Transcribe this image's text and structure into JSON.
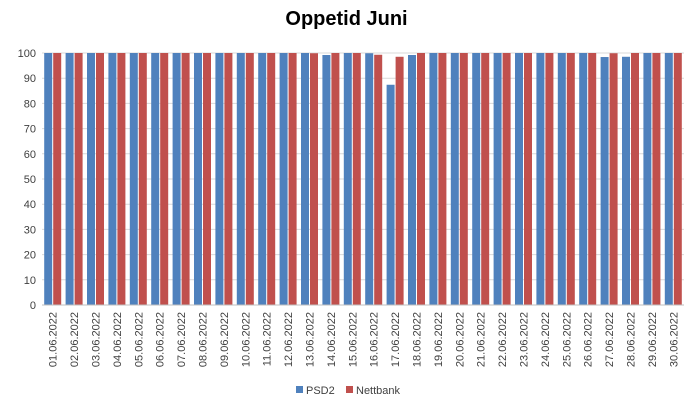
{
  "chart_data": {
    "type": "bar",
    "title": "Oppetid Juni",
    "xlabel": "",
    "ylabel": "",
    "ylim": [
      0,
      100
    ],
    "yticks": [
      0,
      10,
      20,
      30,
      40,
      50,
      60,
      70,
      80,
      90,
      100
    ],
    "grid": true,
    "legend_position": "bottom",
    "categories": [
      "01.06.2022",
      "02.06.2022",
      "03.06.2022",
      "04.06.2022",
      "05.06.2022",
      "06.06.2022",
      "07.06.2022",
      "08.06.2022",
      "09.06.2022",
      "10.06.2022",
      "11.06.2022",
      "12.06.2022",
      "13.06.2022",
      "14.06.2022",
      "15.06.2022",
      "16.06.2022",
      "17.06.2022",
      "18.06.2022",
      "19.06.2022",
      "20.06.2022",
      "21.06.2022",
      "22.06.2022",
      "23.06.2022",
      "24.06.2022",
      "25.06.2022",
      "26.06.2022",
      "27.06.2022",
      "28.06.2022",
      "29.06.2022",
      "30.06.2022"
    ],
    "series": [
      {
        "name": "PSD2",
        "color": "#4f81bd",
        "values": [
          100,
          100,
          100,
          100,
          100,
          100,
          100,
          100,
          100,
          100,
          100,
          100,
          100,
          99.2,
          100,
          99.9,
          87.4,
          99.2,
          100,
          100,
          100,
          100,
          100,
          100,
          100,
          100,
          98.4,
          98.5,
          100,
          100
        ]
      },
      {
        "name": "Nettbank",
        "color": "#c0504d",
        "values": [
          100,
          100,
          100,
          100,
          100,
          100,
          100,
          100,
          100,
          100,
          100,
          100,
          99.9,
          100,
          100,
          99.3,
          98.5,
          100,
          100,
          100,
          100,
          100,
          100,
          100,
          100,
          100,
          99.9,
          100,
          100,
          100
        ]
      }
    ]
  }
}
